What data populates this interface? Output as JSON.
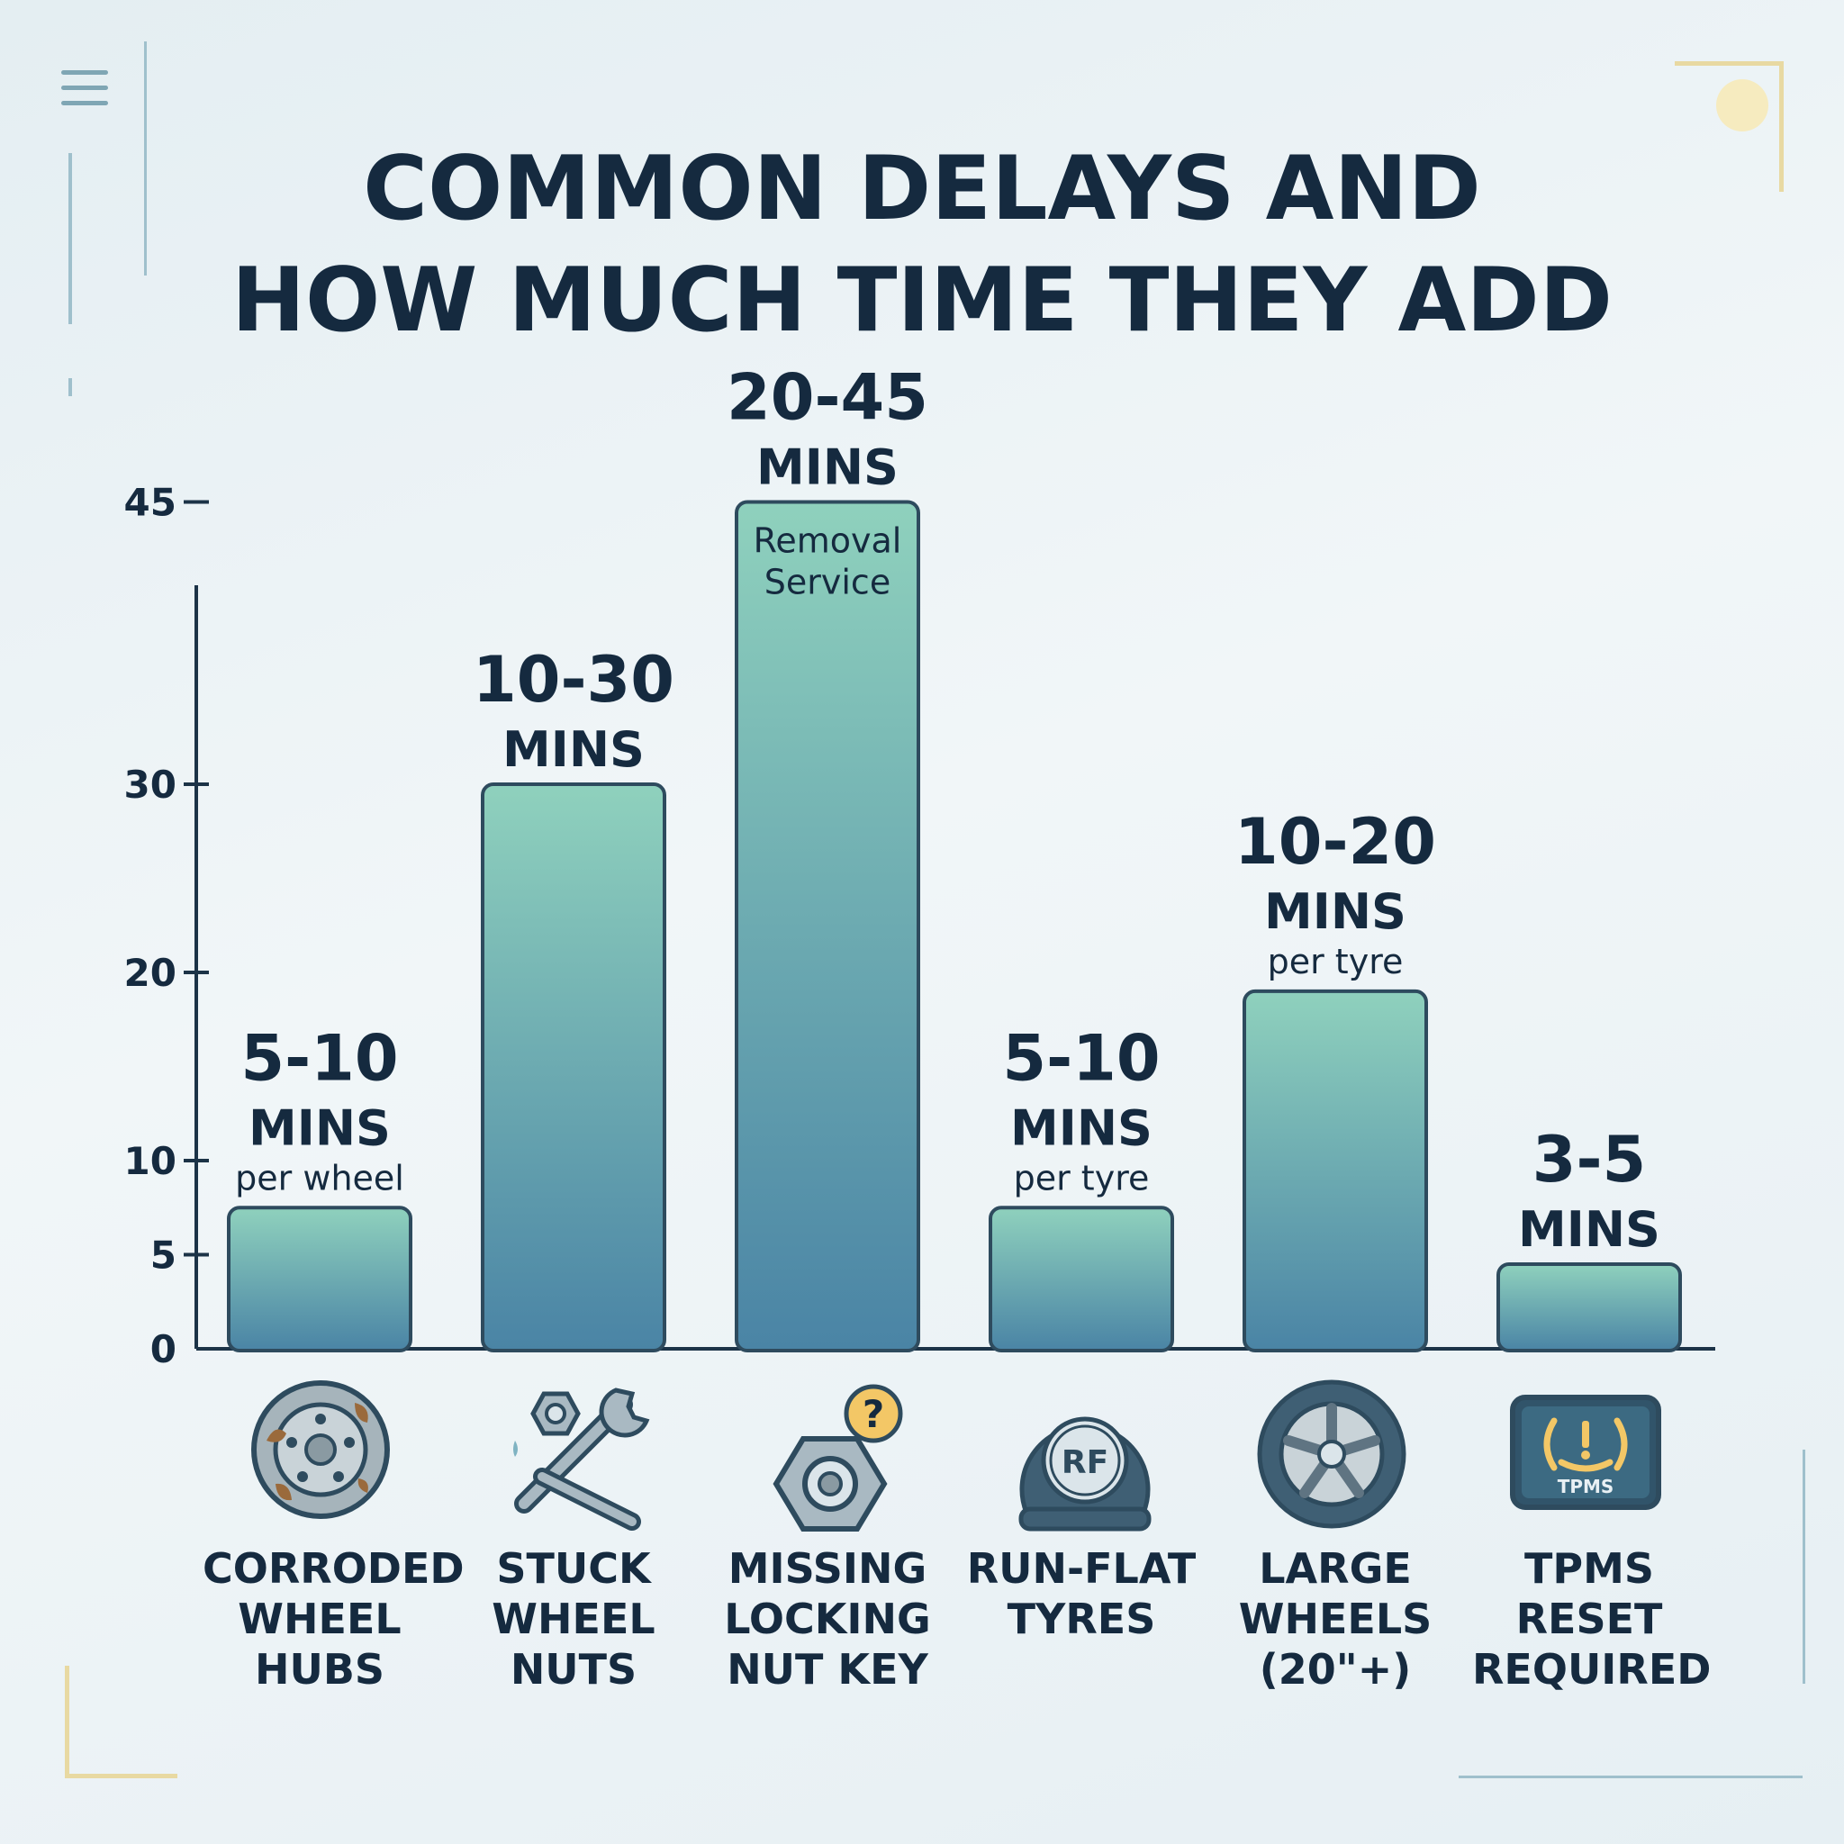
{
  "title": {
    "line1": "COMMON DELAYS AND",
    "line2": "HOW MUCH TIME THEY ADD"
  },
  "colors": {
    "text": "#152a3f",
    "bar_top": "#8fd1bd",
    "bar_bottom": "#4a84a5",
    "bar_stroke": "#2e4b5e",
    "axis": "#1c3347"
  },
  "chart_data": {
    "type": "bar",
    "title": "COMMON DELAYS AND HOW MUCH TIME THEY ADD",
    "xlabel": "",
    "ylabel": "",
    "ylim": [
      0,
      45
    ],
    "yticks": [
      "0",
      "5",
      "10",
      "20",
      "30",
      "45"
    ],
    "grid": false,
    "legend": "none",
    "categories": [
      [
        "CORRODED",
        "WHEEL",
        "HUBS"
      ],
      [
        "STUCK",
        "WHEEL",
        "NUTS"
      ],
      [
        "MISSING",
        "LOCKING",
        "NUT KEY"
      ],
      [
        "RUN-FLAT",
        "TYRES"
      ],
      [
        "LARGE",
        "WHEELS",
        "(20\"+)"
      ],
      [
        "TPMS",
        "RESET",
        "REQUIRED"
      ]
    ],
    "values": [
      7.5,
      30,
      45,
      7.5,
      19,
      4.5
    ],
    "ranges": [
      [
        5,
        10
      ],
      [
        10,
        30
      ],
      [
        20,
        45
      ],
      [
        5,
        10
      ],
      [
        10,
        20
      ],
      [
        3,
        5
      ]
    ],
    "value_labels": [
      "5-10",
      "10-30",
      "20-45",
      "5-10",
      "10-20",
      "3-5"
    ],
    "unit_label": "MINS",
    "notes": [
      "per wheel",
      "",
      "",
      "per tyre",
      "per tyre",
      ""
    ],
    "in_bar_notes": [
      "",
      "",
      "Removal\nService",
      "",
      "",
      ""
    ]
  },
  "icons": [
    "corroded-hub-icon",
    "wrench-nut-icon",
    "locking-nut-question-icon",
    "run-flat-tyre-icon",
    "large-wheel-icon",
    "tpms-warning-icon"
  ],
  "icon_text": {
    "runflat": "RF",
    "tpms": "TPMS",
    "question": "?"
  }
}
